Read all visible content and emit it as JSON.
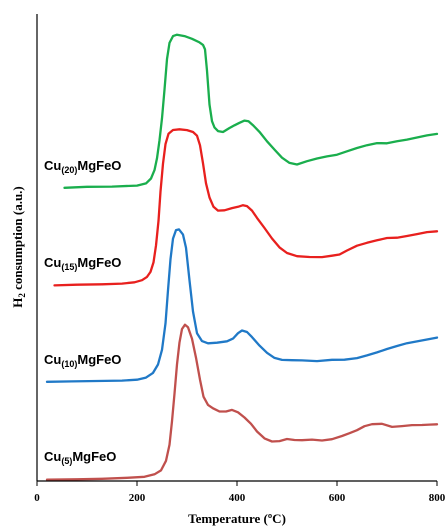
{
  "chart_data": {
    "type": "line",
    "xlabel": "Temperature (ºC)",
    "ylabel_main": "H",
    "ylabel_sub": "2",
    "ylabel_rest": " consumption (a.u.)",
    "xlim": [
      0,
      800
    ],
    "x_ticks": [
      "0",
      "200",
      "400",
      "600",
      "800"
    ],
    "grid": false,
    "series": [
      {
        "name": "Cu(20)MgFeO",
        "label_main": "Cu",
        "label_sub": "(20)",
        "label_rest": "MgFeO",
        "color": "#1aae4d",
        "points": [
          [
            55,
            187.8
          ],
          [
            100,
            186.8
          ],
          [
            150,
            186.6
          ],
          [
            200,
            185.6
          ],
          [
            218,
            183.4
          ],
          [
            228,
            178.5
          ],
          [
            235,
            170.1
          ],
          [
            240,
            158.3
          ],
          [
            245,
            140.3
          ],
          [
            250,
            118.3
          ],
          [
            255,
            89.7
          ],
          [
            260,
            59.1
          ],
          [
            265,
            42.9
          ],
          [
            272,
            36.1
          ],
          [
            280,
            34.7
          ],
          [
            295,
            36.1
          ],
          [
            310,
            38.8
          ],
          [
            325,
            42.4
          ],
          [
            332,
            44.9
          ],
          [
            336,
            49.4
          ],
          [
            340,
            70.7
          ],
          [
            345,
            104.6
          ],
          [
            350,
            121.2
          ],
          [
            355,
            127.5
          ],
          [
            362,
            131.1
          ],
          [
            372,
            132.0
          ],
          [
            385,
            128.0
          ],
          [
            395,
            125.3
          ],
          [
            405,
            122.8
          ],
          [
            415,
            120.6
          ],
          [
            423,
            121.3
          ],
          [
            432,
            125.2
          ],
          [
            445,
            131.9
          ],
          [
            460,
            141.3
          ],
          [
            475,
            149.6
          ],
          [
            490,
            157.7
          ],
          [
            505,
            162.9
          ],
          [
            520,
            164.5
          ],
          [
            540,
            161.2
          ],
          [
            560,
            158.5
          ],
          [
            580,
            156.4
          ],
          [
            600,
            154.7
          ],
          [
            620,
            151.3
          ],
          [
            640,
            148.0
          ],
          [
            660,
            145.2
          ],
          [
            680,
            143.1
          ],
          [
            700,
            143.3
          ],
          [
            720,
            141.3
          ],
          [
            740,
            139.6
          ],
          [
            760,
            137.5
          ],
          [
            780,
            135.4
          ],
          [
            800,
            133.9
          ]
        ]
      },
      {
        "name": "Cu(15)MgFeO",
        "label_main": "Cu",
        "label_sub": "(15)",
        "label_rest": "MgFeO",
        "color": "#e8201e",
        "points": [
          [
            35,
            285.4
          ],
          [
            80,
            284.7
          ],
          [
            130,
            284.3
          ],
          [
            170,
            283.6
          ],
          [
            195,
            282.3
          ],
          [
            210,
            280.2
          ],
          [
            220,
            276.9
          ],
          [
            227,
            271.9
          ],
          [
            233,
            262.4
          ],
          [
            238,
            245.5
          ],
          [
            243,
            220.9
          ],
          [
            247,
            191.6
          ],
          [
            252,
            163.6
          ],
          [
            257,
            144.1
          ],
          [
            263,
            133.8
          ],
          [
            272,
            130.0
          ],
          [
            285,
            129.3
          ],
          [
            300,
            130.1
          ],
          [
            312,
            132.0
          ],
          [
            320,
            135.7
          ],
          [
            326,
            145.3
          ],
          [
            332,
            163.3
          ],
          [
            338,
            183.3
          ],
          [
            345,
            197.5
          ],
          [
            353,
            206.8
          ],
          [
            362,
            210.6
          ],
          [
            375,
            210.3
          ],
          [
            390,
            208.1
          ],
          [
            402,
            206.8
          ],
          [
            412,
            205.2
          ],
          [
            420,
            206.1
          ],
          [
            430,
            210.6
          ],
          [
            440,
            217.9
          ],
          [
            455,
            228.0
          ],
          [
            470,
            238.5
          ],
          [
            485,
            247.4
          ],
          [
            500,
            253.0
          ],
          [
            520,
            256.2
          ],
          [
            545,
            257.0
          ],
          [
            570,
            257.1
          ],
          [
            590,
            255.7
          ],
          [
            605,
            254.5
          ],
          [
            620,
            250.5
          ],
          [
            640,
            245.7
          ],
          [
            660,
            242.8
          ],
          [
            680,
            240.3
          ],
          [
            700,
            238.0
          ],
          [
            720,
            237.7
          ],
          [
            740,
            236.0
          ],
          [
            760,
            234.1
          ],
          [
            780,
            232.1
          ],
          [
            800,
            231.3
          ]
        ]
      },
      {
        "name": "Cu(10)MgFeO",
        "label_main": "Cu",
        "label_sub": "(10)",
        "label_rest": "MgFeO",
        "color": "#2079c7",
        "points": [
          [
            20,
            381.8
          ],
          [
            70,
            381.4
          ],
          [
            120,
            381.0
          ],
          [
            170,
            380.6
          ],
          [
            200,
            379.7
          ],
          [
            218,
            377.6
          ],
          [
            232,
            372.9
          ],
          [
            242,
            364.5
          ],
          [
            250,
            349.8
          ],
          [
            257,
            323.4
          ],
          [
            262,
            290.3
          ],
          [
            267,
            259.1
          ],
          [
            272,
            238.6
          ],
          [
            278,
            230.1
          ],
          [
            284,
            229.4
          ],
          [
            292,
            234.6
          ],
          [
            298,
            247.7
          ],
          [
            305,
            280.4
          ],
          [
            312,
            311.5
          ],
          [
            320,
            333.2
          ],
          [
            330,
            341.1
          ],
          [
            342,
            343.3
          ],
          [
            360,
            342.7
          ],
          [
            380,
            341.3
          ],
          [
            392,
            338.6
          ],
          [
            402,
            333.2
          ],
          [
            410,
            330.5
          ],
          [
            420,
            332.0
          ],
          [
            430,
            337.1
          ],
          [
            445,
            345.6
          ],
          [
            460,
            352.8
          ],
          [
            475,
            357.9
          ],
          [
            490,
            359.9
          ],
          [
            510,
            360.2
          ],
          [
            530,
            360.4
          ],
          [
            560,
            361.1
          ],
          [
            590,
            359.8
          ],
          [
            615,
            359.7
          ],
          [
            640,
            358.1
          ],
          [
            660,
            355.4
          ],
          [
            680,
            352.4
          ],
          [
            700,
            349.0
          ],
          [
            720,
            346.0
          ],
          [
            740,
            343.2
          ],
          [
            760,
            341.4
          ],
          [
            780,
            339.5
          ],
          [
            800,
            337.6
          ]
        ]
      },
      {
        "name": "Cu(5)MgFeO",
        "label_main": "Cu",
        "label_sub": "(5)",
        "label_rest": "MgFeO",
        "color": "#c0504d",
        "points": [
          [
            20,
            479.7
          ],
          [
            80,
            479.3
          ],
          [
            130,
            478.8
          ],
          [
            180,
            477.8
          ],
          [
            215,
            476.8
          ],
          [
            235,
            474.3
          ],
          [
            248,
            470.4
          ],
          [
            258,
            460.8
          ],
          [
            265,
            444.8
          ],
          [
            270,
            421.2
          ],
          [
            275,
            393.7
          ],
          [
            280,
            364.4
          ],
          [
            285,
            342.4
          ],
          [
            290,
            329.0
          ],
          [
            296,
            324.7
          ],
          [
            302,
            327.2
          ],
          [
            310,
            338.8
          ],
          [
            318,
            357.7
          ],
          [
            326,
            379.7
          ],
          [
            333,
            396.7
          ],
          [
            342,
            404.9
          ],
          [
            352,
            408.3
          ],
          [
            365,
            411.5
          ],
          [
            378,
            411.5
          ],
          [
            390,
            409.9
          ],
          [
            402,
            412.3
          ],
          [
            415,
            417.5
          ],
          [
            428,
            423.8
          ],
          [
            440,
            431.5
          ],
          [
            455,
            438.4
          ],
          [
            470,
            441.5
          ],
          [
            485,
            441.1
          ],
          [
            500,
            439.0
          ],
          [
            515,
            440.0
          ],
          [
            530,
            440.2
          ],
          [
            550,
            439.6
          ],
          [
            570,
            440.5
          ],
          [
            590,
            439.2
          ],
          [
            610,
            436.0
          ],
          [
            625,
            433.2
          ],
          [
            640,
            430.2
          ],
          [
            655,
            426.2
          ],
          [
            670,
            424.2
          ],
          [
            690,
            423.8
          ],
          [
            710,
            426.9
          ],
          [
            730,
            426.1
          ],
          [
            750,
            425.1
          ],
          [
            770,
            425.0
          ],
          [
            785,
            424.6
          ],
          [
            800,
            424.3
          ]
        ]
      }
    ]
  }
}
